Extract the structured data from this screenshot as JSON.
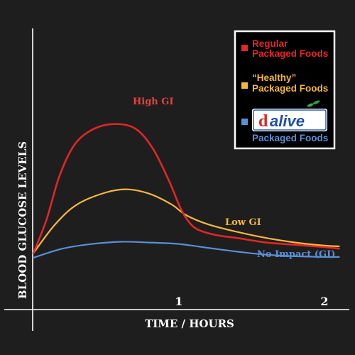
{
  "chart_data": {
    "type": "line",
    "xlabel": "TIME / HOURS",
    "ylabel": "BLOOD GLUCOSE LEVELS",
    "xlim": [
      0,
      2
    ],
    "ylim": [
      0,
      10
    ],
    "xticks": [
      "1",
      "2"
    ],
    "grid": false,
    "legend": {
      "placement": "top-right",
      "entries": [
        {
          "lines": [
            "Regular",
            "Packaged Foods"
          ],
          "color": "#e32626"
        },
        {
          "lines": [
            "“Healthy”",
            "Packaged Foods"
          ],
          "color": "#f6b73c"
        },
        {
          "lines": [
            "Packaged Foods"
          ],
          "color": "#5b8fd6",
          "logo": "dalive-logo",
          "logo_text": "dalive"
        }
      ]
    },
    "annotations": [
      {
        "text": "High GI",
        "color": "#e8403a"
      },
      {
        "text": "Low GI",
        "color": "#f6b73c"
      },
      {
        "text": "No Impact (GI)",
        "color": "#5b8fd6"
      }
    ],
    "series": [
      {
        "color": "#e32626",
        "x": [
          0,
          0.09,
          0.18,
          0.28,
          0.4,
          0.55,
          0.7,
          0.82,
          0.93,
          1.0,
          1.05,
          1.12,
          1.25,
          1.4,
          1.6,
          1.8,
          2.0,
          2.1
        ],
        "y": [
          0.3,
          2.5,
          5.4,
          7.4,
          8.4,
          8.8,
          8.5,
          7.2,
          5.1,
          3.5,
          2.6,
          1.9,
          1.5,
          1.3,
          1.0,
          0.85,
          0.7,
          0.6
        ]
      },
      {
        "color": "#f6b73c",
        "x": [
          0,
          0.15,
          0.3,
          0.5,
          0.65,
          0.8,
          0.95,
          1.05,
          1.2,
          1.4,
          1.6,
          1.8,
          2.0,
          2.1
        ],
        "y": [
          0.3,
          2.2,
          3.5,
          4.3,
          4.5,
          4.2,
          3.5,
          2.8,
          2.2,
          1.7,
          1.3,
          1.0,
          0.8,
          0.75
        ]
      },
      {
        "color": "#5b8fd6",
        "x": [
          0,
          0.2,
          0.4,
          0.6,
          0.8,
          1.0,
          1.2,
          1.4,
          1.6,
          1.8,
          2.0,
          2.1
        ],
        "y": [
          0.0,
          0.6,
          0.9,
          1.05,
          1.0,
          0.9,
          0.65,
          0.4,
          0.2,
          0.1,
          0.05,
          0.05
        ]
      }
    ]
  }
}
